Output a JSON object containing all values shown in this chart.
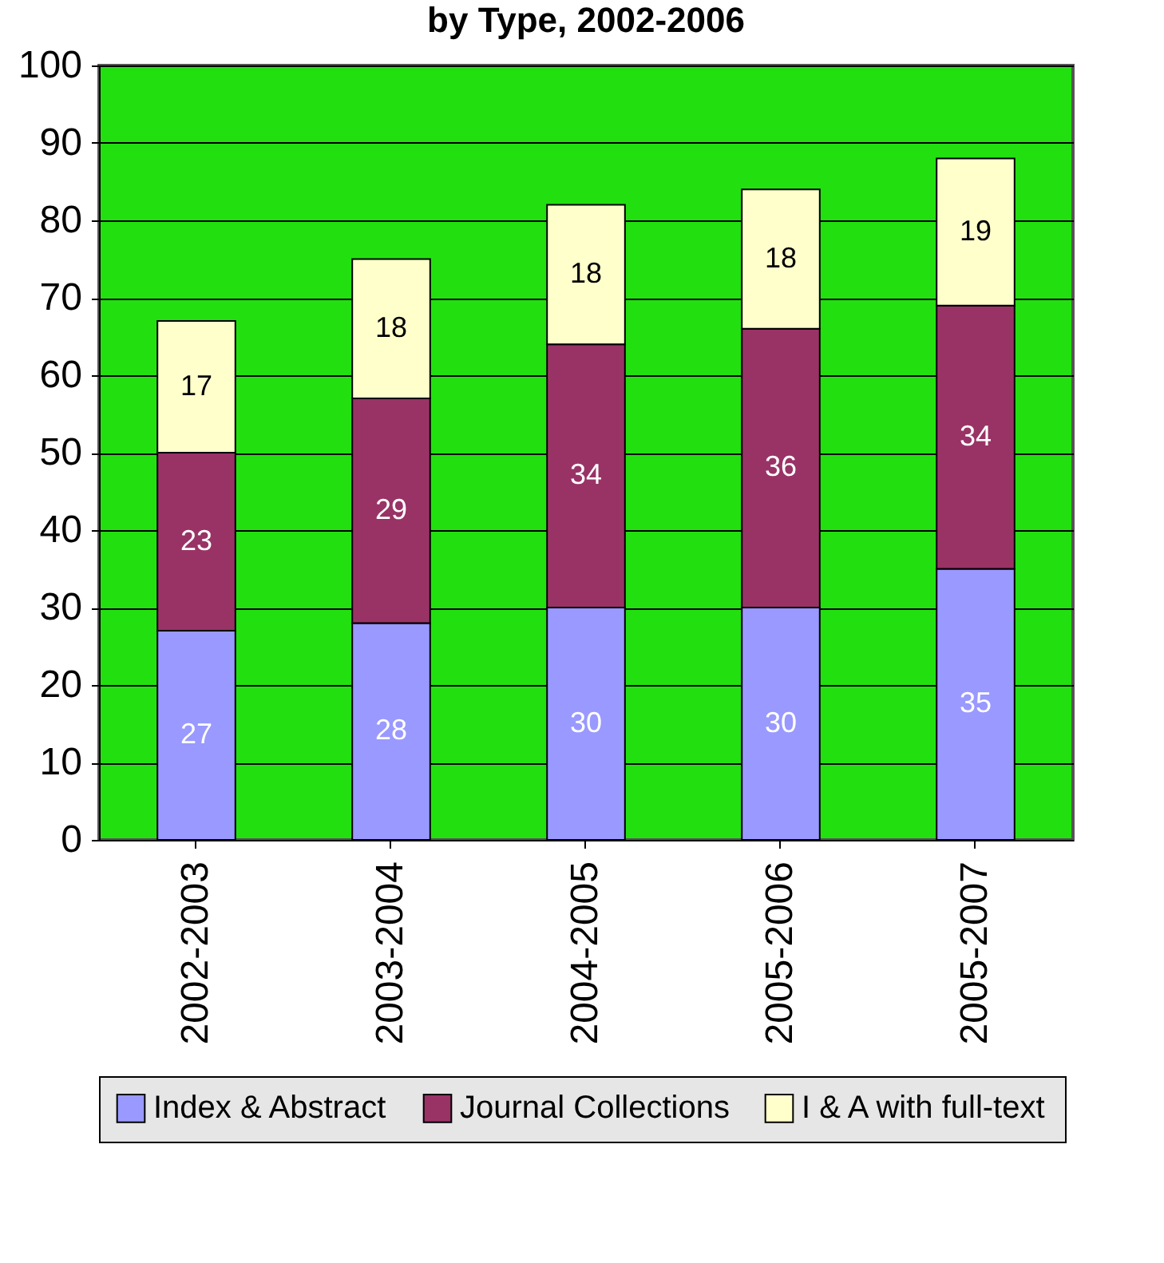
{
  "chart_data": {
    "type": "bar",
    "title": "by Type, 2002-2006",
    "categories": [
      "2002-2003",
      "2003-2004",
      "2004-2005",
      "2005-2006",
      "2005-2007"
    ],
    "stacked": true,
    "data_labels": true,
    "grid": "y",
    "legend": "bottom",
    "ylim": [
      0,
      100
    ],
    "yticks": [
      0,
      10,
      20,
      30,
      40,
      50,
      60,
      70,
      80,
      90,
      100
    ],
    "series": [
      {
        "name": "Index & Abstract",
        "color": "#9999ff",
        "values": [
          27,
          28,
          30,
          30,
          35
        ]
      },
      {
        "name": "Journal Collections",
        "color": "#993366",
        "values": [
          23,
          29,
          34,
          36,
          34
        ]
      },
      {
        "name": "I & A with full-text",
        "color": "#ffffcc",
        "values": [
          17,
          18,
          18,
          18,
          19
        ]
      }
    ]
  }
}
